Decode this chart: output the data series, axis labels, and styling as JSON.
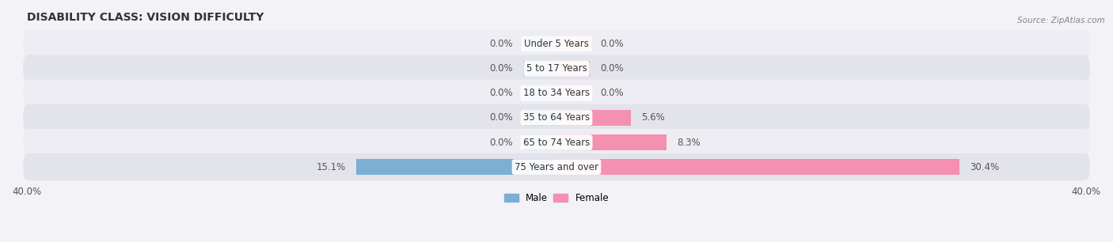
{
  "title": "DISABILITY CLASS: VISION DIFFICULTY",
  "source_text": "Source: ZipAtlas.com",
  "categories": [
    "Under 5 Years",
    "5 to 17 Years",
    "18 to 34 Years",
    "35 to 64 Years",
    "65 to 74 Years",
    "75 Years and over"
  ],
  "male_values": [
    0.0,
    0.0,
    0.0,
    0.0,
    0.0,
    15.1
  ],
  "female_values": [
    0.0,
    0.0,
    0.0,
    5.6,
    8.3,
    30.4
  ],
  "male_color": "#7bafd4",
  "female_color": "#f490b0",
  "xlim": 40.0,
  "bar_height": 0.62,
  "stub_size": 2.5,
  "figsize": [
    14.06,
    3.06
  ],
  "dpi": 100,
  "title_fontsize": 10,
  "label_fontsize": 8.5,
  "tick_fontsize": 8.5,
  "category_fontsize": 8.5,
  "row_bg_light": "#ededf3",
  "row_bg_dark": "#e3e3eb",
  "fig_bg": "#f2f2f7"
}
